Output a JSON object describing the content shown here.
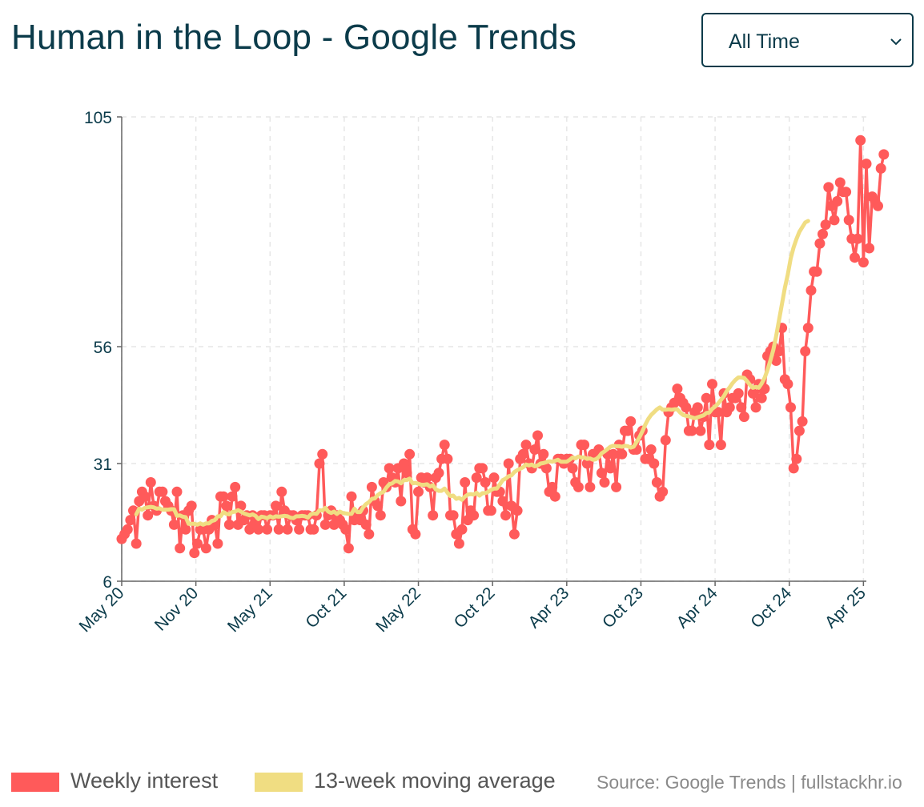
{
  "header": {
    "title": "Human in the Loop - Google Trends"
  },
  "range_select": {
    "value": "All Time"
  },
  "legend": {
    "items": [
      {
        "label": "Weekly interest",
        "color": "#ff5a5a"
      },
      {
        "label": "13-week moving average",
        "color": "#f0dd82"
      }
    ],
    "source": "Source: Google Trends | fullstackhr.io"
  },
  "colors": {
    "axis": "#666666",
    "text": "#0b3b4a",
    "grid": "#e6e6e6"
  },
  "icons": {
    "select_arrow": "chevron-down-icon"
  },
  "chart_data": {
    "type": "line",
    "title": "Human in the Loop - Google Trends",
    "xlabel": "",
    "ylabel": "",
    "grid": true,
    "ylim": [
      6,
      105
    ],
    "yticks": [
      6,
      31,
      56,
      105
    ],
    "x_range": [
      0,
      256
    ],
    "xticks": [
      {
        "x": 0,
        "label": "May 20"
      },
      {
        "x": 25.5,
        "label": "Nov 20"
      },
      {
        "x": 51,
        "label": "May 21"
      },
      {
        "x": 76.5,
        "label": "Oct 21"
      },
      {
        "x": 102,
        "label": "May 22"
      },
      {
        "x": 127.5,
        "label": "Oct 22"
      },
      {
        "x": 153,
        "label": "Apr 23"
      },
      {
        "x": 178.5,
        "label": "Oct 23"
      },
      {
        "x": 204,
        "label": "Apr 24"
      },
      {
        "x": 229.5,
        "label": "Oct 24"
      },
      {
        "x": 255,
        "label": "Apr 25"
      }
    ],
    "series": [
      {
        "name": "Weekly interest",
        "color": "#ff5a5a",
        "values": [
          15,
          16,
          17,
          19,
          21,
          14,
          23,
          25,
          24,
          20,
          27,
          22,
          21,
          25,
          25,
          23,
          22,
          21,
          18,
          25,
          13,
          20,
          17,
          21,
          22,
          12,
          14,
          17,
          17,
          13,
          17,
          19,
          18,
          14,
          24,
          24,
          22,
          18,
          24,
          26,
          18,
          22,
          19,
          20,
          17,
          20,
          18,
          17,
          20,
          20,
          17,
          20,
          20,
          22,
          17,
          25,
          21,
          17,
          20,
          20,
          19,
          17,
          20,
          20,
          20,
          17,
          17,
          20,
          31,
          33,
          18,
          20,
          21,
          18,
          20,
          19,
          18,
          17,
          13,
          24,
          19,
          20,
          19,
          21,
          18,
          16,
          26,
          23,
          22,
          20,
          27,
          26,
          30,
          28,
          27,
          30,
          23,
          31,
          29,
          33,
          17,
          16,
          25,
          28,
          27,
          28,
          26,
          20,
          28,
          29,
          32,
          35,
          32,
          20,
          20,
          16,
          14,
          17,
          27,
          19,
          21,
          20,
          28,
          30,
          30,
          27,
          21,
          21,
          28,
          25,
          25,
          23,
          20,
          31,
          22,
          16,
          21,
          32,
          33,
          35,
          31,
          30,
          34,
          37,
          31,
          33,
          30,
          25,
          26,
          24,
          32,
          32,
          31,
          32,
          32,
          30,
          27,
          26,
          35,
          35,
          31,
          26,
          33,
          33,
          34,
          29,
          27,
          33,
          30,
          33,
          26,
          35,
          33,
          38,
          38,
          40,
          34,
          34,
          37,
          38,
          32,
          32,
          34,
          31,
          27,
          24,
          25,
          36,
          42,
          43,
          44,
          47,
          45,
          44,
          43,
          38,
          38,
          42,
          43,
          38,
          41,
          45,
          35,
          48,
          42,
          42,
          35,
          46,
          42,
          43,
          45,
          45,
          46,
          43,
          41,
          50,
          49,
          46,
          43,
          48,
          45,
          47,
          54,
          55,
          56,
          53,
          55,
          60,
          49,
          48,
          43,
          30,
          32,
          38,
          40,
          55,
          60,
          68,
          72,
          72,
          78,
          80,
          82,
          90,
          86,
          83,
          87,
          91,
          89,
          89,
          83,
          79,
          75,
          79,
          100,
          74,
          95,
          77,
          88,
          87,
          86,
          94,
          97
        ]
      },
      {
        "name": "13-week moving average",
        "color": "#f0dd82",
        "values": [
          null,
          null,
          null,
          null,
          null,
          20.2,
          21.4,
          21.2,
          21.6,
          21.7,
          21.8,
          21.7,
          21.4,
          21.5,
          21.2,
          21.2,
          21.2,
          21.3,
          21.3,
          19.9,
          20.0,
          19.7,
          19.6,
          18.2,
          18.2,
          18.2,
          18.0,
          18.3,
          18.0,
          18.3,
          18.3,
          18.8,
          19.0,
          19.8,
          19.8,
          20.7,
          20.3,
          20.2,
          20.7,
          20.8,
          21.1,
          20.8,
          20.4,
          20.2,
          20.0,
          20.2,
          19.9,
          19.2,
          19.7,
          19.6,
          19.4,
          19.8,
          19.5,
          19.8,
          19.7,
          19.8,
          19.9,
          19.8,
          19.5,
          19.4,
          19.8,
          19.8,
          19.9,
          19.8,
          19.5,
          20.2,
          20.4,
          20.3,
          21.1,
          21.0,
          21.6,
          20.8,
          20.5,
          20.8,
          20.3,
          20.8,
          20.5,
          20.4,
          20.3,
          20.3,
          21.4,
          20.7,
          20.7,
          21.7,
          22.4,
          22.8,
          23.5,
          23.6,
          24.3,
          24.7,
          25.0,
          25.9,
          26.6,
          26.8,
          27.3,
          27.2,
          26.8,
          27.5,
          27.5,
          27.8,
          26.8,
          26.9,
          26.7,
          26.5,
          26.5,
          26.6,
          26.1,
          26.4,
          25.5,
          25.2,
          25.2,
          25.7,
          24.8,
          24.1,
          24.2,
          23.5,
          23.7,
          23.3,
          24.0,
          24.4,
          24.5,
          24.4,
          24.8,
          24.2,
          24.7,
          24.7,
          25.0,
          25.4,
          25.7,
          25.7,
          26.6,
          27.5,
          27.8,
          28.3,
          28.5,
          29.2,
          29.6,
          29.9,
          30.2,
          30.8,
          30.6,
          30.8,
          30.4,
          30.6,
          31.0,
          31.1,
          31.3,
          31.5,
          31.4,
          31.6,
          31.8,
          31.4,
          31.4,
          31.4,
          31.8,
          32.3,
          32.1,
          32.5,
          32.3,
          32.3,
          32.0,
          32.1,
          31.8,
          31.9,
          32.4,
          33.2,
          33.6,
          34.1,
          34.6,
          34.8,
          34.7,
          34.7,
          34.6,
          34.8,
          34.7,
          34.4,
          34.6,
          35.6,
          36.6,
          37.9,
          39.3,
          40.5,
          41.4,
          42.0,
          42.6,
          43.0,
          42.5,
          42.5,
          42.6,
          42.5,
          42.6,
          42.6,
          41.9,
          41.4,
          41.2,
          41.1,
          40.9,
          40.7,
          40.9,
          41.1,
          41.3,
          41.8,
          41.9,
          42.7,
          43.2,
          43.8,
          44.6,
          45.4,
          46.5,
          47.3,
          48.2,
          48.9,
          49.4,
          49.4,
          49.3,
          48.6,
          47.8,
          47.2,
          47.4,
          47.2,
          48.1,
          49.3,
          51.0,
          53.0,
          55.3,
          58.3,
          61.7,
          65.1,
          68.6,
          71.4,
          74.8,
          77.2,
          79.0,
          80.5,
          81.5,
          82.5,
          82.8,
          null,
          null,
          null,
          null,
          null,
          null,
          null,
          null,
          null,
          null,
          null,
          null,
          null
        ]
      }
    ]
  }
}
